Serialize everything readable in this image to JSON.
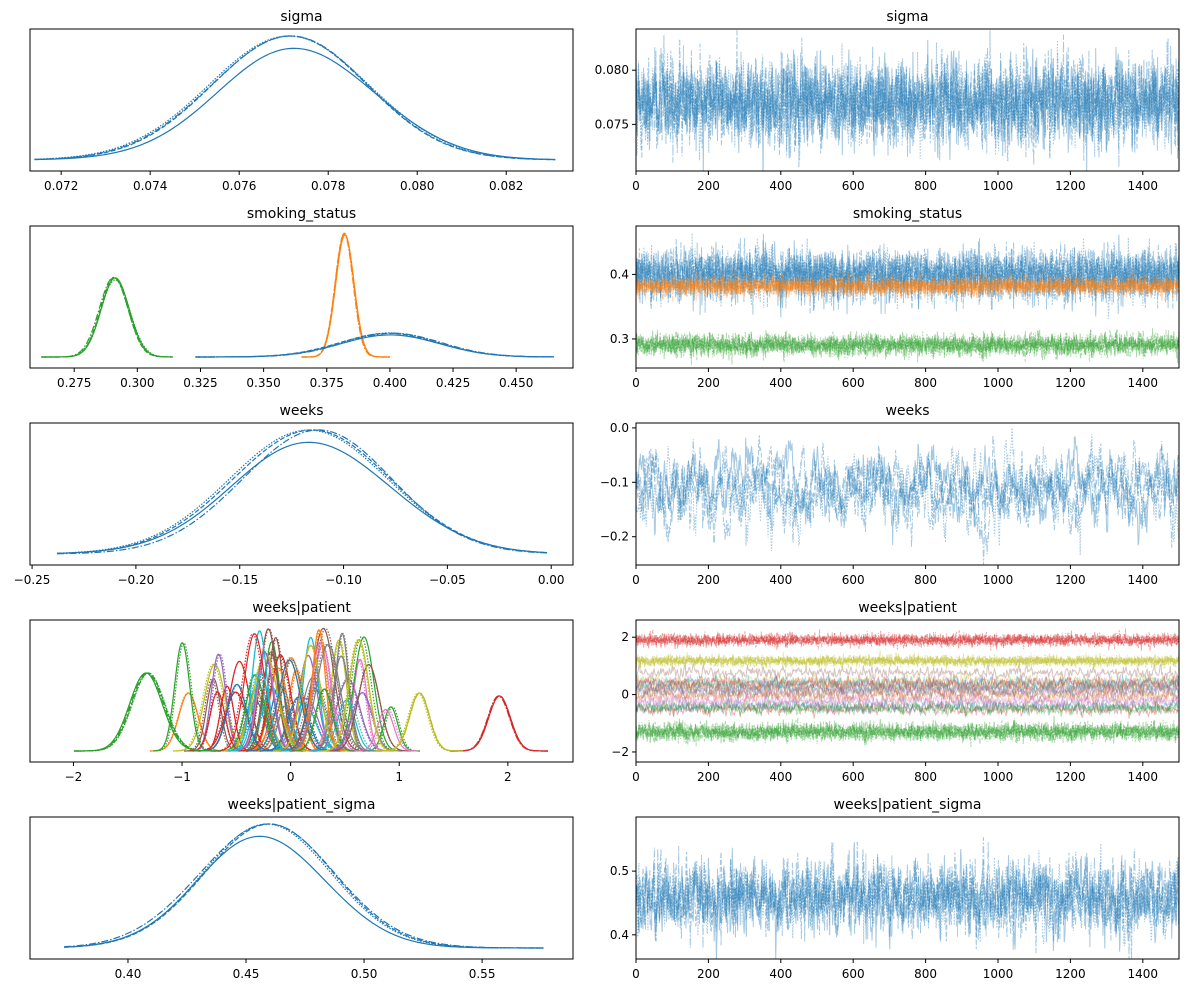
{
  "chart_data": [
    {
      "id": "sigma_kde",
      "type": "line",
      "title": "sigma",
      "x_ticks": [
        "0.072",
        "0.074",
        "0.076",
        "0.078",
        "0.080",
        "0.082"
      ],
      "xlim": [
        0.0713,
        0.0835
      ],
      "y_ticks": [],
      "modes": [
        {
          "mean": 0.0771,
          "sd": 0.0018
        }
      ],
      "curve_range": [
        0.0714,
        0.0831
      ],
      "color": "#1f77b4"
    },
    {
      "id": "sigma_trace",
      "type": "line",
      "title": "sigma",
      "x_ticks": [
        "0",
        "200",
        "400",
        "600",
        "800",
        "1000",
        "1200",
        "1400"
      ],
      "xlim": [
        0,
        1500
      ],
      "y_ticks": [
        "0.075",
        "0.080"
      ],
      "ylim": [
        0.0707,
        0.0838
      ],
      "draws": 1500,
      "color": "#1f77b4",
      "series": [
        {
          "mean": 0.0771,
          "sd": 0.0019
        }
      ]
    },
    {
      "id": "smoking_kde",
      "type": "line",
      "title": "smoking_status",
      "x_ticks": [
        "0.275",
        "0.300",
        "0.325",
        "0.350",
        "0.375",
        "0.400",
        "0.425",
        "0.450"
      ],
      "xlim": [
        0.2575,
        0.4725
      ],
      "y_ticks": [],
      "modes": [
        {
          "mean": 0.291,
          "sd": 0.0056,
          "color": "#2ca02c",
          "range": [
            0.262,
            0.314
          ]
        },
        {
          "mean": 0.382,
          "sd": 0.0036,
          "color": "#ff7f0e",
          "range": [
            0.365,
            0.4
          ]
        },
        {
          "mean": 0.4,
          "sd": 0.0188,
          "color": "#1f77b4",
          "range": [
            0.323,
            0.465
          ]
        }
      ]
    },
    {
      "id": "smoking_trace",
      "type": "line",
      "title": "smoking_status",
      "x_ticks": [
        "0",
        "200",
        "400",
        "600",
        "800",
        "1000",
        "1200",
        "1400"
      ],
      "xlim": [
        0,
        1500
      ],
      "y_ticks": [
        "0.3",
        "0.4"
      ],
      "ylim": [
        0.255,
        0.475
      ],
      "draws": 1500,
      "series": [
        {
          "mean": 0.4,
          "sd": 0.019,
          "color": "#1f77b4"
        },
        {
          "mean": 0.382,
          "sd": 0.007,
          "color": "#ff7f0e"
        },
        {
          "mean": 0.291,
          "sd": 0.008,
          "color": "#2ca02c"
        }
      ]
    },
    {
      "id": "weeks_kde",
      "type": "line",
      "title": "weeks",
      "x_ticks": [
        "−0.25",
        "−0.20",
        "−0.15",
        "−0.10",
        "−0.05",
        "0.00"
      ],
      "xlim": [
        -0.251,
        0.0105
      ],
      "y_ticks": [],
      "modes": [
        {
          "mean": -0.114,
          "sd": 0.038
        }
      ],
      "curve_range": [
        -0.238,
        -0.002
      ],
      "color": "#1f77b4"
    },
    {
      "id": "weeks_trace",
      "type": "line",
      "title": "weeks",
      "x_ticks": [
        "0",
        "200",
        "400",
        "600",
        "800",
        "1000",
        "1200",
        "1400"
      ],
      "xlim": [
        0,
        1500
      ],
      "y_ticks": [
        "−0.2",
        "−0.1",
        "0.0"
      ],
      "ylim": [
        -0.252,
        0.009
      ],
      "draws": 1500,
      "color": "#1f77b4",
      "series": [
        {
          "mean": -0.114,
          "sd": 0.038,
          "ar": 0.9
        }
      ]
    },
    {
      "id": "wp_kde",
      "type": "line",
      "title": "weeks|patient",
      "x_ticks": [
        "−2",
        "−1",
        "0",
        "1",
        "2"
      ],
      "xlim": [
        -2.4,
        2.6
      ],
      "y_ticks": [],
      "palette": [
        "#1f77b4",
        "#ff7f0e",
        "#2ca02c",
        "#d62728",
        "#9467bd",
        "#8c564b",
        "#e377c2",
        "#7f7f7f",
        "#bcbd22",
        "#17becf"
      ],
      "modes": [
        {
          "mean": -1.32,
          "sd": 0.15,
          "color": "#2ca02c"
        },
        {
          "mean": 1.92,
          "sd": 0.1,
          "color": "#d62728"
        },
        {
          "mean": 1.18,
          "sd": 0.09,
          "color": "#bcbd22"
        }
      ],
      "group_count": 60,
      "group_center": 0.0,
      "group_spread": 0.45
    },
    {
      "id": "wp_trace",
      "type": "line",
      "title": "weeks|patient",
      "x_ticks": [
        "0",
        "200",
        "400",
        "600",
        "800",
        "1000",
        "1200",
        "1400"
      ],
      "xlim": [
        0,
        1500
      ],
      "y_ticks": [
        "−2",
        "0",
        "2"
      ],
      "ylim": [
        -2.35,
        2.6
      ],
      "draws": 1500,
      "series": [
        {
          "mean": 1.9,
          "sd": 0.1,
          "color": "#d62728"
        },
        {
          "mean": 1.18,
          "sd": 0.09,
          "color": "#bcbd22"
        },
        {
          "mean": -1.3,
          "sd": 0.15,
          "color": "#2ca02c"
        }
      ]
    },
    {
      "id": "wps_kde",
      "type": "line",
      "title": "weeks|patient_sigma",
      "x_ticks": [
        "0.40",
        "0.45",
        "0.50",
        "0.55"
      ],
      "xlim": [
        0.3585,
        0.5885
      ],
      "y_ticks": [],
      "modes": [
        {
          "mean": 0.458,
          "sd": 0.027
        }
      ],
      "curve_range": [
        0.373,
        0.576
      ],
      "color": "#1f77b4"
    },
    {
      "id": "wps_trace",
      "type": "line",
      "title": "weeks|patient_sigma",
      "x_ticks": [
        "0",
        "200",
        "400",
        "600",
        "800",
        "1000",
        "1200",
        "1400"
      ],
      "xlim": [
        0,
        1500
      ],
      "y_ticks": [
        "0.4",
        "0.5"
      ],
      "ylim": [
        0.362,
        0.585
      ],
      "draws": 1500,
      "color": "#1f77b4",
      "series": [
        {
          "mean": 0.458,
          "sd": 0.027,
          "ar": 0.6
        }
      ]
    }
  ]
}
